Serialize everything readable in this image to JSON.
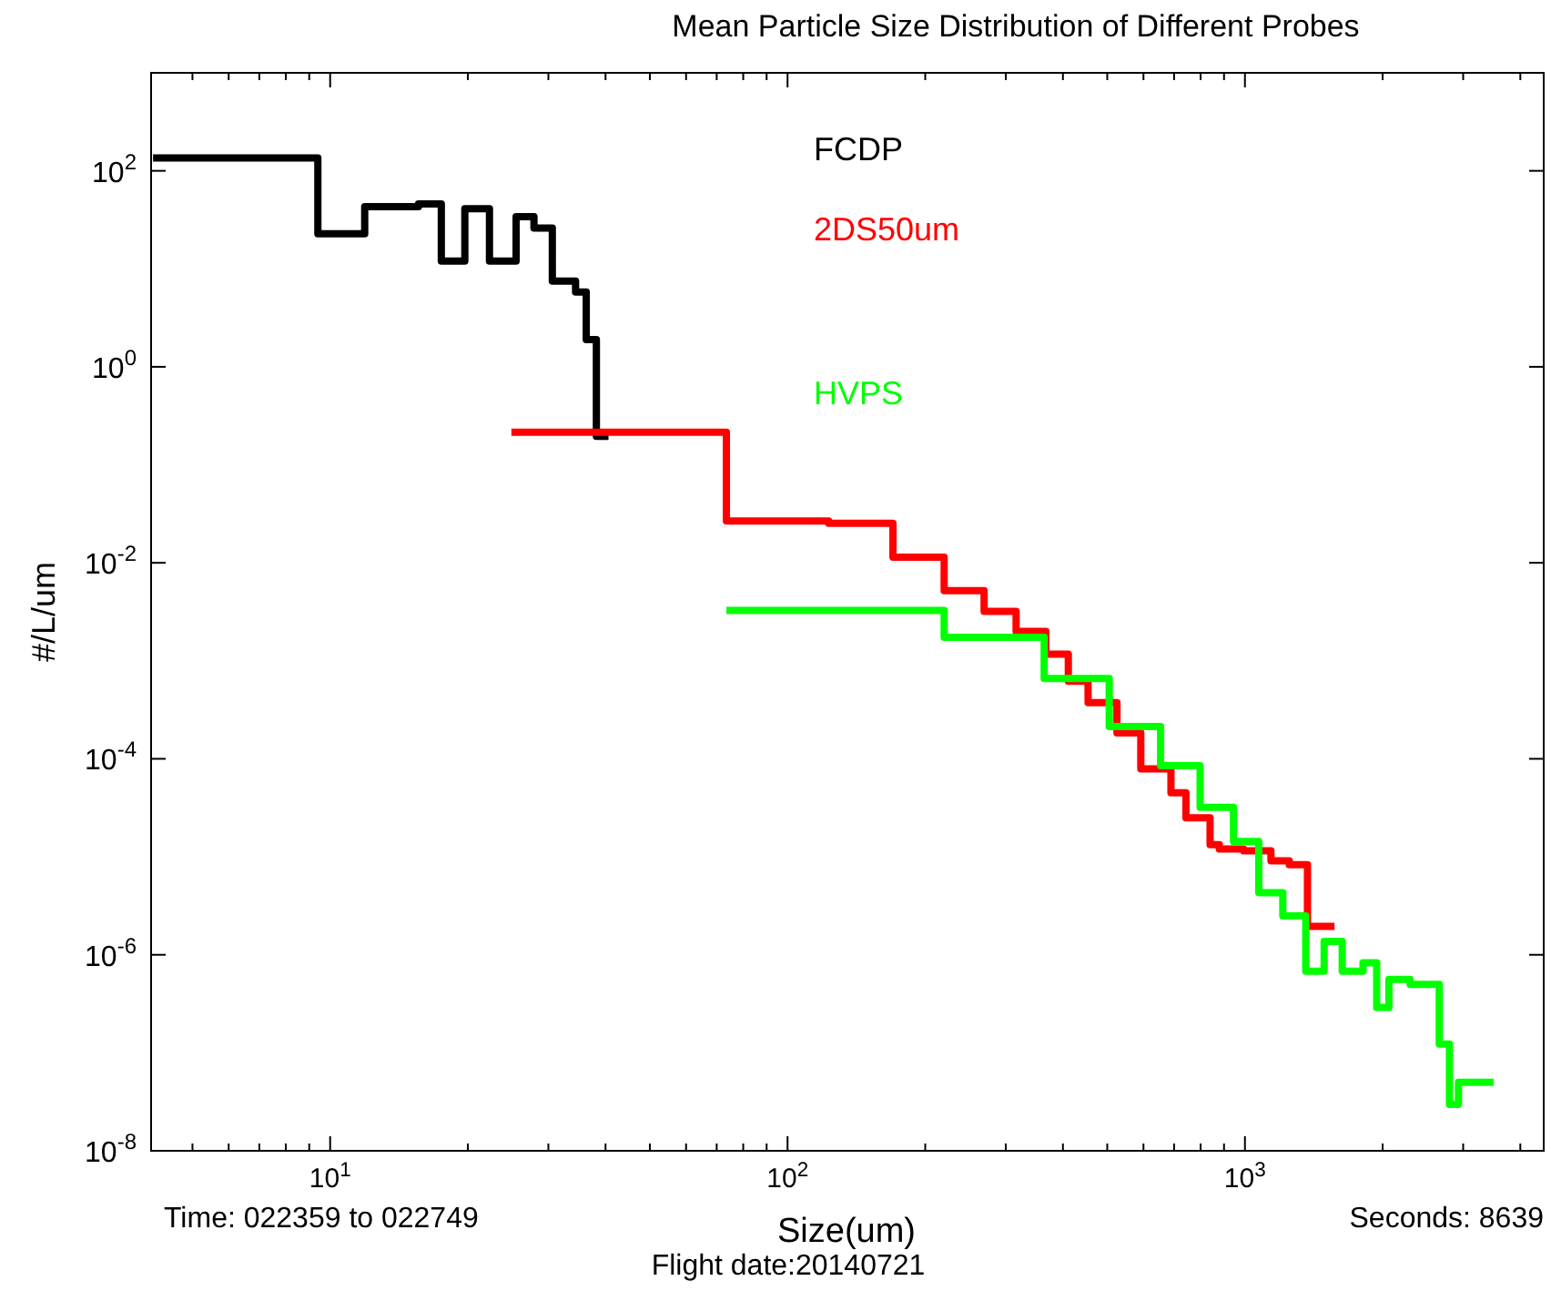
{
  "chart_data": {
    "type": "step",
    "title": "Mean Particle Size Distribution of Different Probes",
    "xlabel": "Size(um)",
    "ylabel": "#/L/um",
    "log": "xy",
    "grid": false,
    "legend": "top",
    "line_style": "solid",
    "marker": "none",
    "xlim": [
      4.06,
      4500
    ],
    "ylim": [
      1e-08,
      1000
    ],
    "xticks": [
      {
        "value": 5,
        "label": null
      },
      {
        "value": 6,
        "label": null
      },
      {
        "value": 7,
        "label": null
      },
      {
        "value": 8,
        "label": null
      },
      {
        "value": 9,
        "label": null
      },
      {
        "value": 10,
        "label": "10$^{1}$"
      },
      {
        "value": 20,
        "label": null
      },
      {
        "value": 30,
        "label": null
      },
      {
        "value": 40,
        "label": null
      },
      {
        "value": 50,
        "label": null
      },
      {
        "value": 60,
        "label": null
      },
      {
        "value": 70,
        "label": null
      },
      {
        "value": 80,
        "label": null
      },
      {
        "value": 90,
        "label": null
      },
      {
        "value": 100,
        "label": "10$^{2}$"
      },
      {
        "value": 200,
        "label": null
      },
      {
        "value": 300,
        "label": null
      },
      {
        "value": 400,
        "label": null
      },
      {
        "value": 500,
        "label": null
      },
      {
        "value": 600,
        "label": null
      },
      {
        "value": 700,
        "label": null
      },
      {
        "value": 800,
        "label": null
      },
      {
        "value": 900,
        "label": null
      },
      {
        "value": 1000,
        "label": "10$^{3}$"
      },
      {
        "value": 2000,
        "label": null
      },
      {
        "value": 3000,
        "label": null
      },
      {
        "value": 4000,
        "label": null
      }
    ],
    "yticks": [
      {
        "value": 1e-08,
        "label": "10$^{-8}$"
      },
      {
        "value": 1e-06,
        "label": "10$^{-6}$"
      },
      {
        "value": 0.0001,
        "label": "10$^{-4}$"
      },
      {
        "value": 0.01,
        "label": "10$^{-2}$"
      },
      {
        "value": 1,
        "label": "10$^{0}$"
      },
      {
        "value": 100,
        "label": "10$^{2}$"
      }
    ],
    "series": [
      {
        "name": "FCDP",
        "color": "#000000",
        "x": [
          4.1,
          9.4,
          11.9,
          15.6,
          17.5,
          19.7,
          22.3,
          25.5,
          27.9,
          30.6,
          34.4,
          36.3,
          38.2,
          40.6
        ],
        "values": [
          135,
          22.8,
          43,
          46,
          12,
          41,
          12,
          34,
          26,
          7.5,
          5.8,
          1.9,
          0.195,
          0.195
        ]
      },
      {
        "name": "2DS50um",
        "color": "#ff0000",
        "x": [
          24.9,
          73.5,
          123,
          170,
          220,
          269,
          316,
          367,
          411,
          454,
          525,
          592,
          689,
          743,
          839,
          879,
          993,
          1140,
          1250,
          1370,
          1570
        ],
        "values": [
          0.215,
          0.0267,
          0.0253,
          0.0114,
          0.0052,
          0.0032,
          0.002,
          0.00117,
          0.00062,
          0.000375,
          0.000184,
          7.9e-05,
          4.5e-05,
          2.5e-05,
          1.33e-05,
          1.2e-05,
          1.15e-05,
          9.1e-06,
          8.3e-06,
          1.95e-06,
          1.95e-06
        ]
      },
      {
        "name": "HVPS",
        "color": "#00ff00",
        "x": [
          73.5,
          220,
          364,
          505,
          654,
          798,
          944,
          1072,
          1210,
          1358,
          1490,
          1632,
          1812,
          1941,
          2064,
          2297,
          2660,
          2800,
          2930,
          3500
        ],
        "values": [
          0.00326,
          0.00174,
          0.00066,
          0.000213,
          8.5e-05,
          3.2e-05,
          1.43e-05,
          4.3e-06,
          2.5e-06,
          6.8e-07,
          1.37e-06,
          6.8e-07,
          8.3e-07,
          2.9e-07,
          5.6e-07,
          5e-07,
          1.23e-07,
          2.97e-08,
          5e-08,
          5e-08
        ]
      }
    ],
    "annotations": [
      "Time: 022359 to 022749",
      "Flight date:20140721",
      "Seconds: 8639"
    ]
  }
}
